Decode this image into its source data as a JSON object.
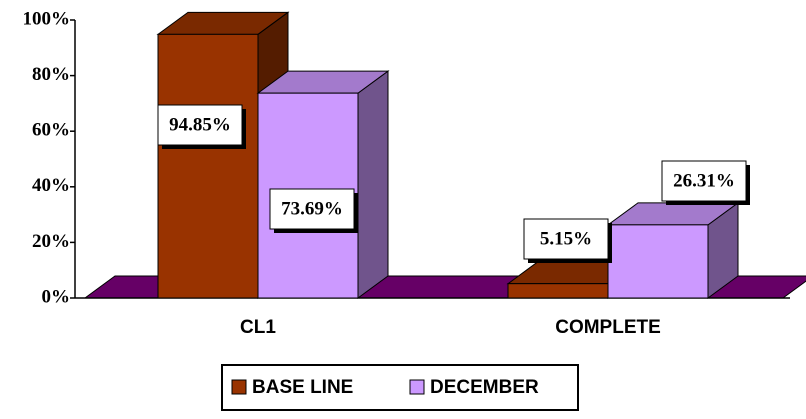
{
  "chart_data": {
    "type": "bar3d",
    "categories": [
      "CL1",
      "COMPLETE"
    ],
    "series": [
      {
        "name": "BASE LINE",
        "color": "#993300",
        "values": [
          94.85,
          5.15
        ],
        "value_labels": [
          "94.85%",
          "5.15%"
        ]
      },
      {
        "name": "DECEMBER",
        "color": "#cc99ff",
        "values": [
          73.69,
          26.31
        ],
        "value_labels": [
          "73.69%",
          "26.31%"
        ]
      }
    ],
    "ylim": [
      0,
      100
    ],
    "yticks": [
      {
        "value": 0,
        "label": "0%"
      },
      {
        "value": 20,
        "label": "20%"
      },
      {
        "value": 40,
        "label": "40%"
      },
      {
        "value": 60,
        "label": "60%"
      },
      {
        "value": 80,
        "label": "80%"
      },
      {
        "value": 100,
        "label": "100%"
      }
    ],
    "floor_color": "#660066"
  }
}
